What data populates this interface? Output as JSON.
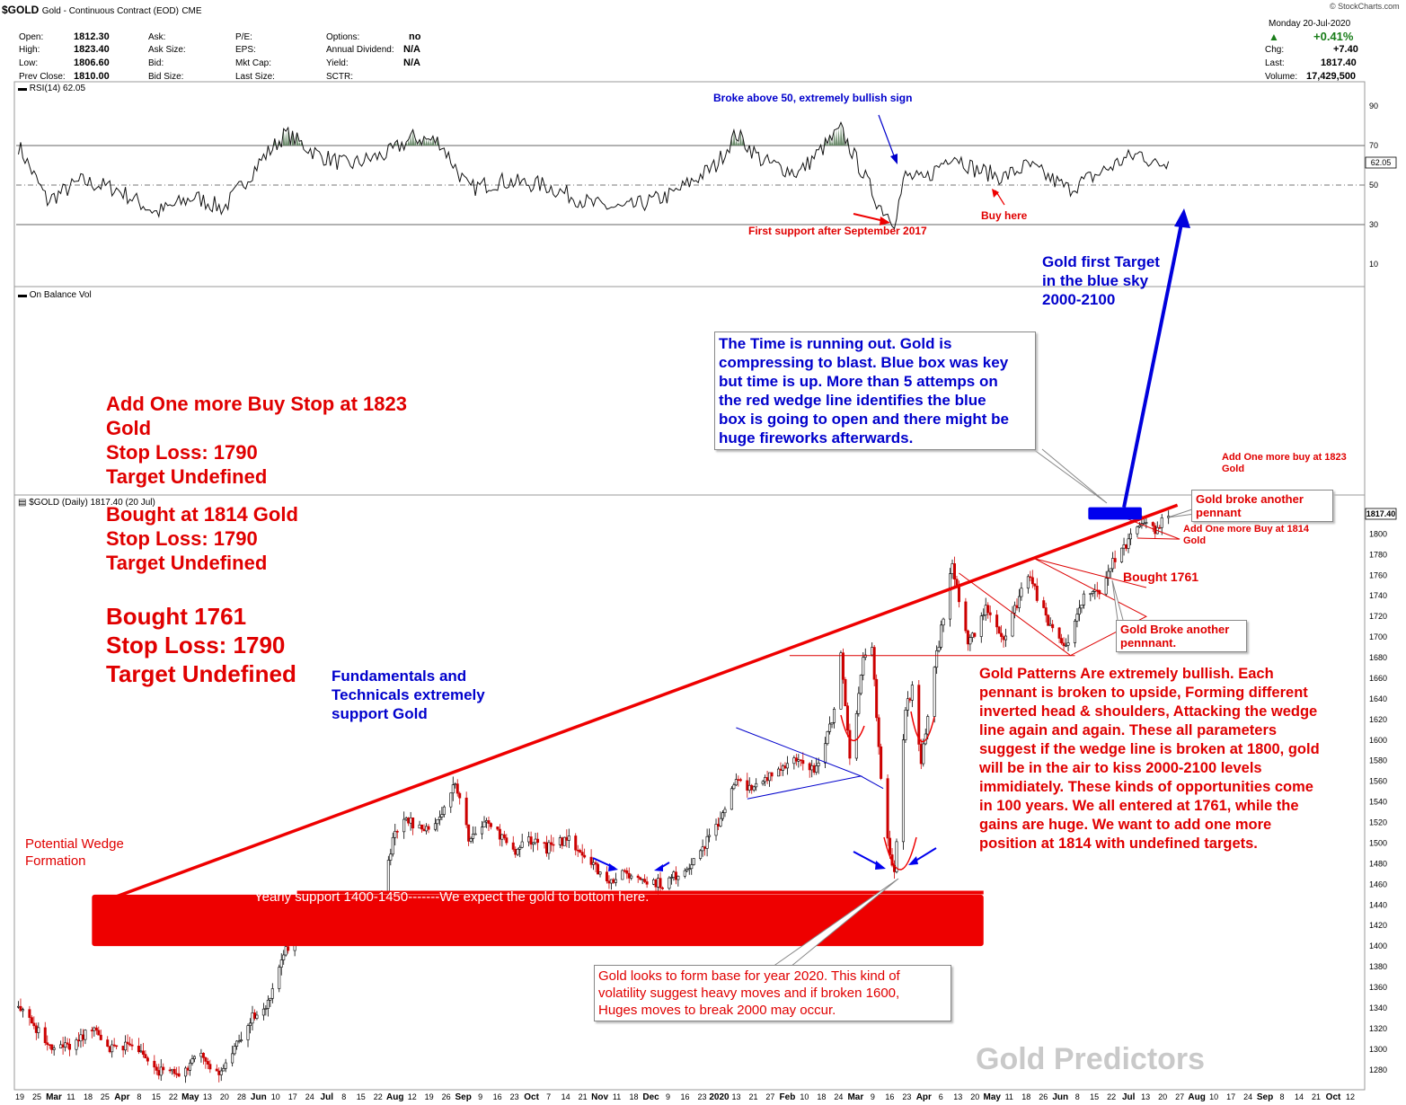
{
  "header": {
    "title": "$GOLD",
    "subtitle": "Gold - Continuous Contract (EOD)",
    "exchange": "CME",
    "source": "© StockCharts.com",
    "date": "Monday  20-Jul-2020",
    "quote": {
      "open_label": "Open:",
      "open": "1812.30",
      "high_label": "High:",
      "high": "1823.40",
      "low_label": "Low:",
      "low": "1806.60",
      "prev_label": "Prev Close:",
      "prev": "1810.00",
      "ask_label": "Ask:",
      "asksize_label": "Ask Size:",
      "bid_label": "Bid:",
      "bidsize_label": "Bid Size:",
      "pe_label": "P/E:",
      "eps_label": "EPS:",
      "mktcap_label": "Mkt Cap:",
      "lastsize_label": "Last Size:",
      "options_label": "Options:",
      "options": "no",
      "div_label": "Annual Dividend:",
      "div": "N/A",
      "yield_label": "Yield:",
      "yield": "N/A",
      "sctr_label": "SCTR:",
      "change_pct": "+0.41%",
      "chg_label": "Chg:",
      "chg": "+7.40",
      "last_label": "Last:",
      "last": "1817.40",
      "vol_label": "Volume:",
      "vol": "17,429,500"
    }
  },
  "colors": {
    "up": "#000000",
    "down": "#cc0000",
    "annotation_red": "#e00000",
    "annotation_blue": "#0000cc",
    "rsi_fill": "#5a7d5a"
  },
  "rsi_panel": {
    "label": "RSI(14) 62.05",
    "current_tag": "62.05",
    "ticks": [
      "90",
      "70",
      "50",
      "30",
      "10"
    ],
    "tick_values": [
      90,
      70,
      50,
      30,
      10
    ],
    "annotations": {
      "broke50": "Broke above 50, extremely bullish sign",
      "first_support": "First support after September 2017",
      "buy_here": "Buy here"
    }
  },
  "obv_panel": {
    "label": "On Balance Vol"
  },
  "price_panel": {
    "label": "$GOLD (Daily) 1817.40 (20 Jul)",
    "current_tag": "1817.40",
    "ticks": [
      "1800",
      "1780",
      "1760",
      "1740",
      "1720",
      "1700",
      "1680",
      "1660",
      "1640",
      "1620",
      "1600",
      "1580",
      "1560",
      "1540",
      "1520",
      "1500",
      "1480",
      "1460",
      "1440",
      "1420",
      "1400",
      "1380",
      "1360",
      "1340",
      "1320",
      "1300",
      "1280"
    ],
    "tick_values": [
      1800,
      1780,
      1760,
      1740,
      1720,
      1700,
      1680,
      1660,
      1640,
      1620,
      1600,
      1580,
      1560,
      1540,
      1520,
      1500,
      1480,
      1460,
      1440,
      1420,
      1400,
      1380,
      1360,
      1340,
      1320,
      1300,
      1280
    ]
  },
  "x_axis": {
    "labels": [
      "19",
      "25",
      "Mar",
      "11",
      "18",
      "25",
      "Apr",
      "8",
      "15",
      "22",
      "May",
      "13",
      "20",
      "28",
      "Jun",
      "10",
      "17",
      "24",
      "Jul",
      "8",
      "15",
      "22",
      "Aug",
      "12",
      "19",
      "26",
      "Sep",
      "9",
      "16",
      "23",
      "Oct",
      "7",
      "14",
      "21",
      "Nov",
      "11",
      "18",
      "Dec",
      "9",
      "16",
      "23",
      "2020",
      "13",
      "21",
      "27",
      "Feb",
      "10",
      "18",
      "24",
      "Mar",
      "9",
      "16",
      "23",
      "Apr",
      "6",
      "13",
      "20",
      "May",
      "11",
      "18",
      "26",
      "Jun",
      "8",
      "15",
      "22",
      "Jul",
      "13",
      "20",
      "27",
      "Aug",
      "10",
      "17",
      "24",
      "Sep",
      "8",
      "14",
      "21",
      "Oct",
      "12"
    ]
  },
  "chart_data": {
    "type": "candlestick",
    "title": "$GOLD (Daily)",
    "x_range": [
      "2019-02-19",
      "2020-10-16"
    ],
    "ylim": [
      1265,
      1830
    ],
    "rsi_ylim": [
      0,
      100
    ],
    "last_close": 1817.4,
    "wedge_line": {
      "from": [
        "2019-04-01",
        1445
      ],
      "to": [
        "2020-07-24",
        1828
      ]
    },
    "support_zone": [
      1400,
      1450
    ],
    "close_series": [
      [
        "2019-02-20",
        1345
      ],
      [
        "2019-02-28",
        1320
      ],
      [
        "2019-03-08",
        1300
      ],
      [
        "2019-03-18",
        1305
      ],
      [
        "2019-03-25",
        1320
      ],
      [
        "2019-04-01",
        1300
      ],
      [
        "2019-04-10",
        1305
      ],
      [
        "2019-04-23",
        1280
      ],
      [
        "2019-05-02",
        1275
      ],
      [
        "2019-05-13",
        1295
      ],
      [
        "2019-05-21",
        1275
      ],
      [
        "2019-05-31",
        1310
      ],
      [
        "2019-06-04",
        1330
      ],
      [
        "2019-06-12",
        1345
      ],
      [
        "2019-06-20",
        1395
      ],
      [
        "2019-06-25",
        1420
      ],
      [
        "2019-07-03",
        1425
      ],
      [
        "2019-07-12",
        1415
      ],
      [
        "2019-07-19",
        1430
      ],
      [
        "2019-08-01",
        1440
      ],
      [
        "2019-08-07",
        1505
      ],
      [
        "2019-08-13",
        1525
      ],
      [
        "2019-08-21",
        1510
      ],
      [
        "2019-08-30",
        1535
      ],
      [
        "2019-09-04",
        1560
      ],
      [
        "2019-09-10",
        1505
      ],
      [
        "2019-09-19",
        1520
      ],
      [
        "2019-09-30",
        1490
      ],
      [
        "2019-10-07",
        1505
      ],
      [
        "2019-10-15",
        1495
      ],
      [
        "2019-10-25",
        1505
      ],
      [
        "2019-11-04",
        1480
      ],
      [
        "2019-11-12",
        1465
      ],
      [
        "2019-11-20",
        1470
      ],
      [
        "2019-11-29",
        1465
      ],
      [
        "2019-12-06",
        1460
      ],
      [
        "2019-12-16",
        1475
      ],
      [
        "2019-12-24",
        1495
      ],
      [
        "2019-12-31",
        1520
      ],
      [
        "2020-01-08",
        1560
      ],
      [
        "2020-01-15",
        1550
      ],
      [
        "2020-01-24",
        1570
      ],
      [
        "2020-02-03",
        1580
      ],
      [
        "2020-02-12",
        1570
      ],
      [
        "2020-02-20",
        1620
      ],
      [
        "2020-02-24",
        1680
      ],
      [
        "2020-02-28",
        1580
      ],
      [
        "2020-03-05",
        1680
      ],
      [
        "2020-03-09",
        1690
      ],
      [
        "2020-03-12",
        1590
      ],
      [
        "2020-03-16",
        1500
      ],
      [
        "2020-03-19",
        1475
      ],
      [
        "2020-03-24",
        1630
      ],
      [
        "2020-03-27",
        1650
      ],
      [
        "2020-03-31",
        1580
      ],
      [
        "2020-04-06",
        1670
      ],
      [
        "2020-04-14",
        1770
      ],
      [
        "2020-04-21",
        1690
      ],
      [
        "2020-04-29",
        1730
      ],
      [
        "2020-05-07",
        1700
      ],
      [
        "2020-05-18",
        1760
      ],
      [
        "2020-05-27",
        1715
      ],
      [
        "2020-06-05",
        1690
      ],
      [
        "2020-06-12",
        1740
      ],
      [
        "2020-06-19",
        1745
      ],
      [
        "2020-06-24",
        1770
      ],
      [
        "2020-07-01",
        1790
      ],
      [
        "2020-07-08",
        1815
      ],
      [
        "2020-07-14",
        1805
      ],
      [
        "2020-07-20",
        1817.4
      ]
    ],
    "rsi_series": [
      [
        "2019-02-20",
        70
      ],
      [
        "2019-03-05",
        42
      ],
      [
        "2019-03-20",
        52
      ],
      [
        "2019-04-05",
        48
      ],
      [
        "2019-04-23",
        36
      ],
      [
        "2019-05-10",
        44
      ],
      [
        "2019-05-23",
        38
      ],
      [
        "2019-06-10",
        64
      ],
      [
        "2019-06-20",
        76
      ],
      [
        "2019-07-05",
        65
      ],
      [
        "2019-07-18",
        60
      ],
      [
        "2019-08-05",
        66
      ],
      [
        "2019-08-16",
        74
      ],
      [
        "2019-08-28",
        72
      ],
      [
        "2019-09-10",
        48
      ],
      [
        "2019-09-24",
        52
      ],
      [
        "2019-10-14",
        50
      ],
      [
        "2019-11-05",
        40
      ],
      [
        "2019-11-19",
        38
      ],
      [
        "2019-12-10",
        45
      ],
      [
        "2019-12-30",
        60
      ],
      [
        "2020-01-08",
        76
      ],
      [
        "2020-01-20",
        62
      ],
      [
        "2020-02-05",
        56
      ],
      [
        "2020-02-24",
        78
      ],
      [
        "2020-03-04",
        58
      ],
      [
        "2020-03-12",
        40
      ],
      [
        "2020-03-19",
        32
      ],
      [
        "2020-03-24",
        55
      ],
      [
        "2020-04-01",
        52
      ],
      [
        "2020-04-14",
        66
      ],
      [
        "2020-04-24",
        58
      ],
      [
        "2020-05-07",
        54
      ],
      [
        "2020-05-18",
        60
      ],
      [
        "2020-06-05",
        48
      ],
      [
        "2020-06-19",
        56
      ],
      [
        "2020-06-30",
        63
      ],
      [
        "2020-07-08",
        66
      ],
      [
        "2020-07-14",
        60
      ],
      [
        "2020-07-20",
        62
      ]
    ]
  },
  "annotations": {
    "add_buy": "Add One more Buy Stop at 1823\nGold\nStop Loss: 1790\nTarget Undefined",
    "bought1814": "Bought at 1814 Gold\nStop Loss: 1790\nTarget Undefined",
    "bought1761": "Bought 1761\nStop Loss: 1790\nTarget Undefined",
    "fundamentals": "Fundamentals and\nTechnicals extremely\nsupport Gold",
    "wedge": "Potential Wedge\nFormation",
    "yearly_support": "Yearly support 1400-1450-------We expect the gold to bottom here.",
    "target": "Gold first Target\nin the blue sky\n2000-2100",
    "time_running": "The Time is running out. Gold is\ncompressing to blast. Blue box was key\nbut time is up. More than 5 attemps on\nthe red wedge line identifies the blue\nbox is going to open and there might be\nhuge fireworks afterwards.",
    "add_buy_1823": "Add One more buy at 1823\nGold",
    "broke_pennant": "Gold broke another\npennant",
    "add_buy_1814": "Add One more Buy at 1814\nGold",
    "bought_1761_small": "Bought 1761",
    "broke_pennant2": "Gold Broke another\npennnant.",
    "patterns": "Gold Patterns Are extremely bullish. Each\npennant is broken to upside, Forming different\ninverted head & shoulders, Attacking the wedge\nline again and again. These all parameters\nsuggest if the wedge line is broken at 1800, gold\nwill be in the air to kiss 2000-2100 levels\nimmidiately. These kinds of opportunities come\nin 100 years. We all entered at 1761, while the\ngains are huge. We want to add one more\nposition at 1814 with undefined targets.",
    "base2020": "Gold looks to form base for year 2020. This kind of\nvolatility suggest heavy moves and if broken 1600,\nHuges moves to break 2000 may occur.",
    "watermark": "Gold Predictors"
  }
}
